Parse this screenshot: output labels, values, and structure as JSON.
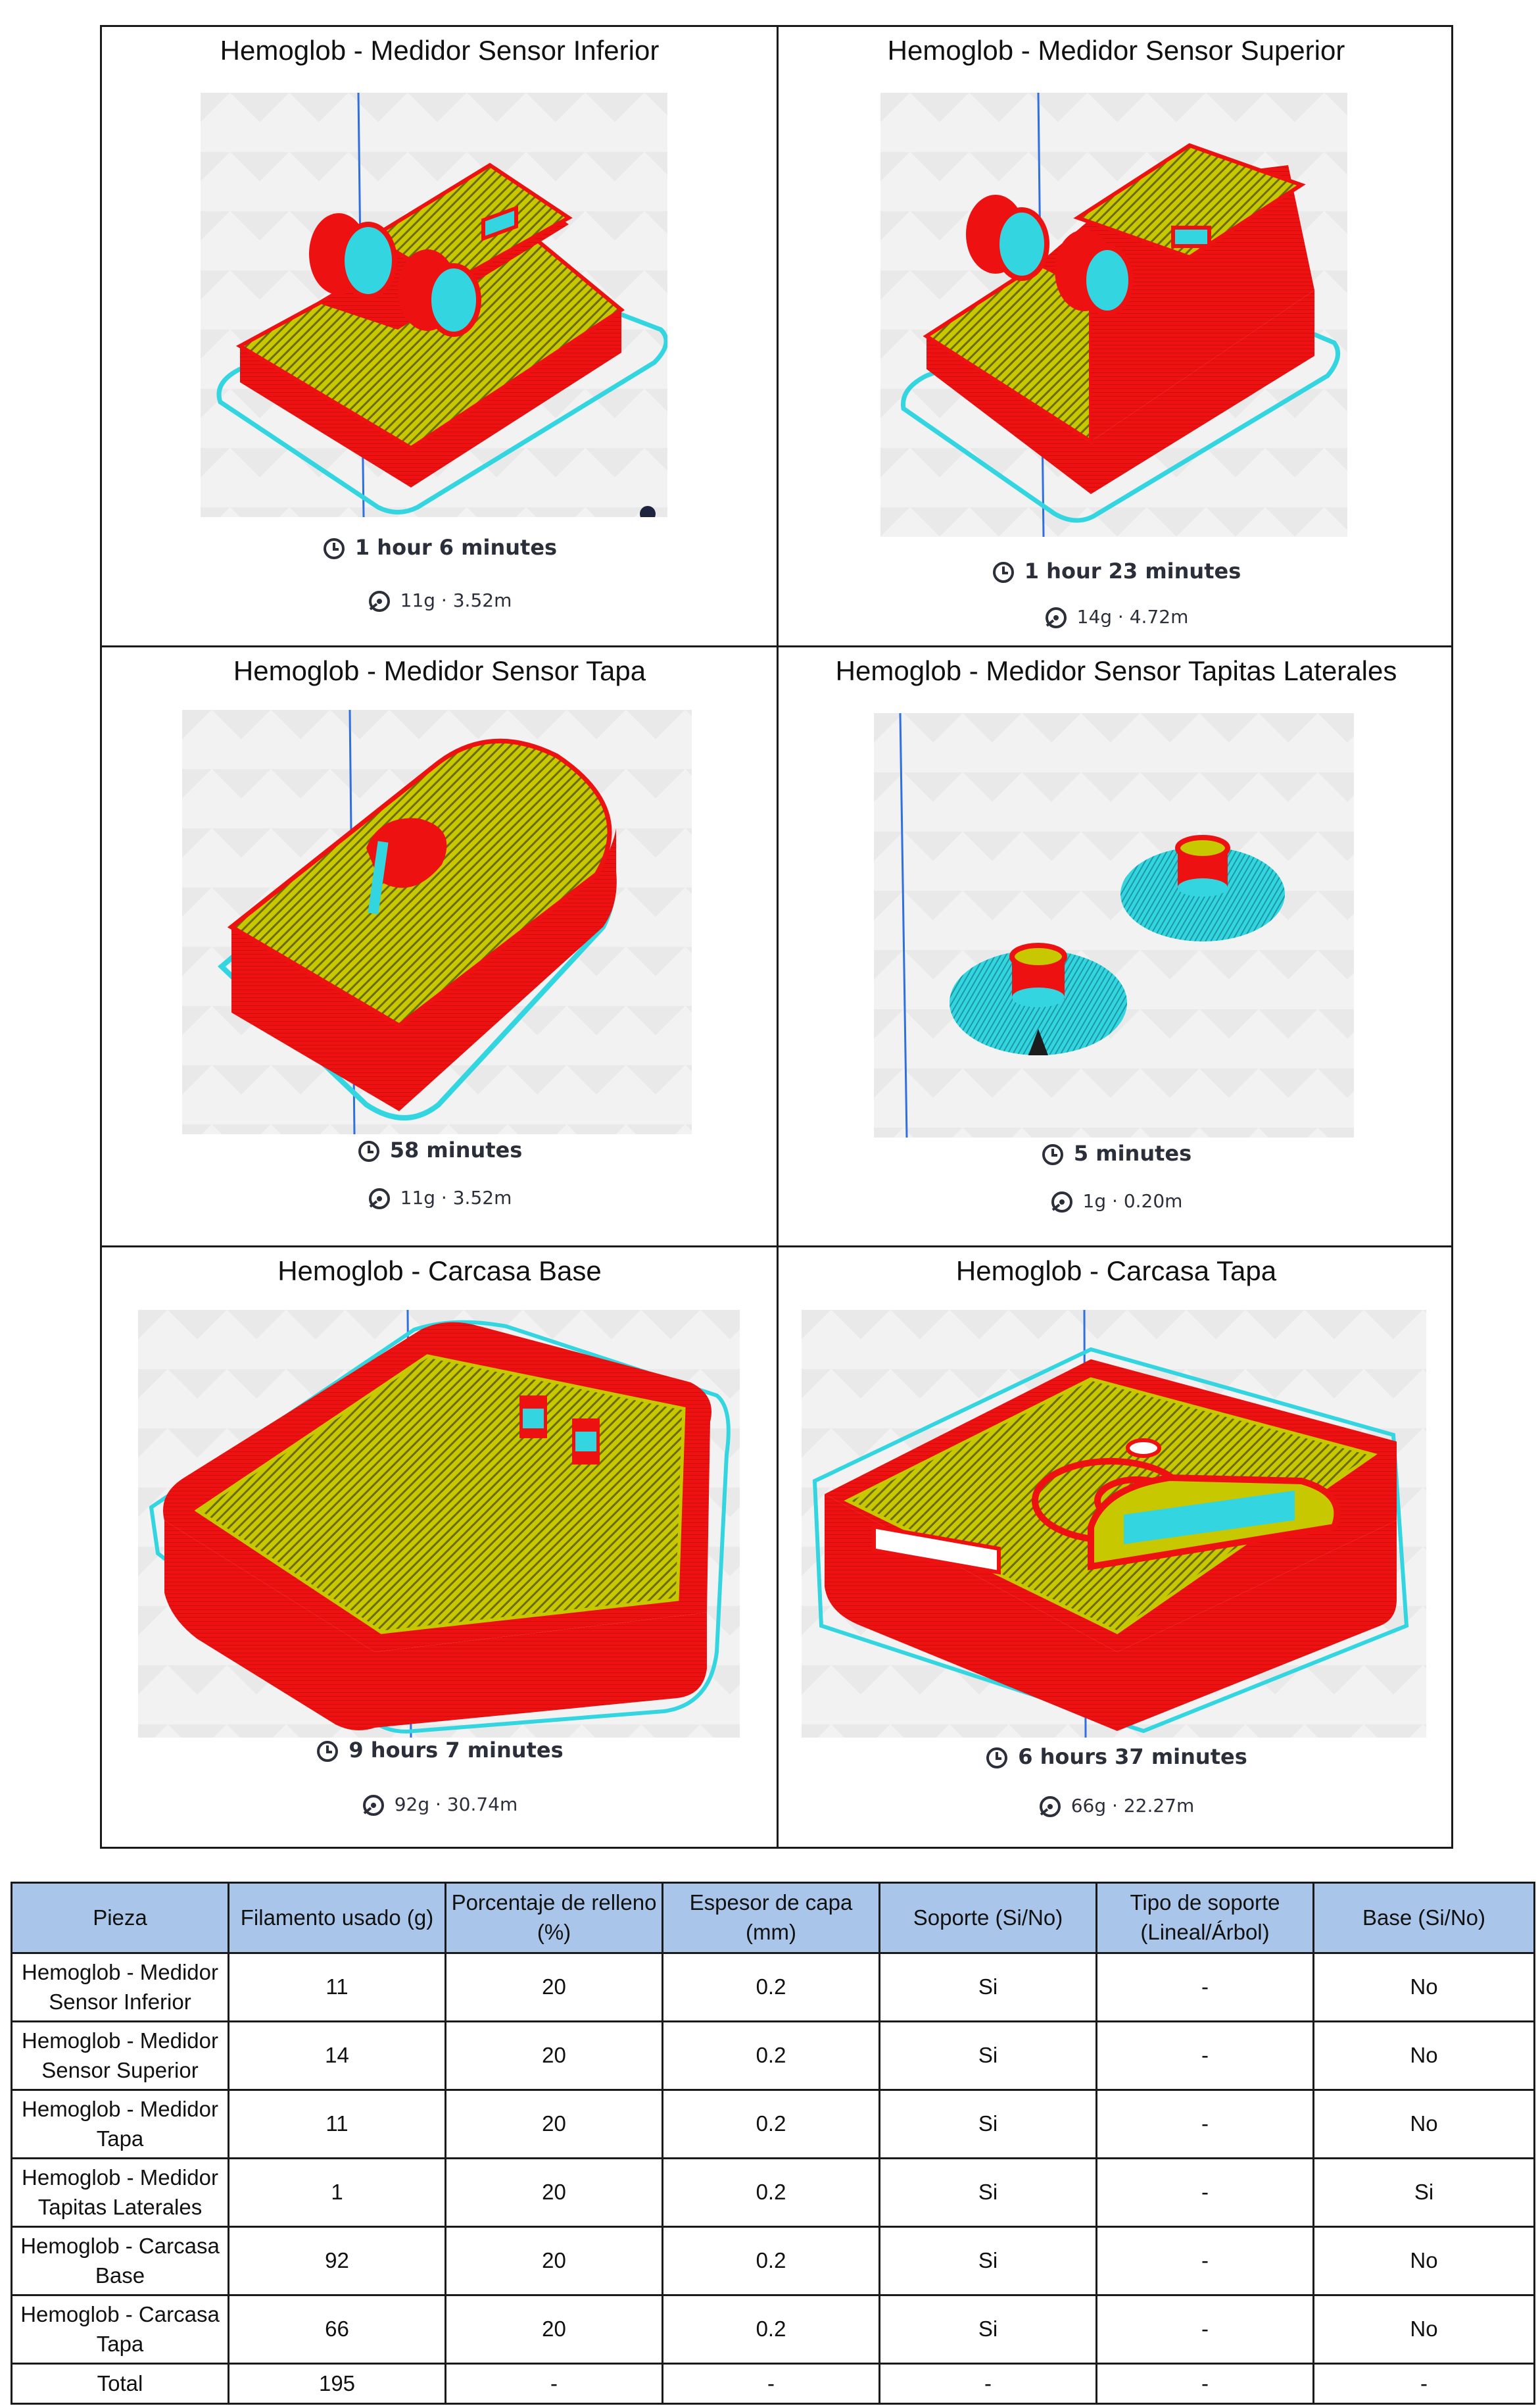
{
  "panels": [
    {
      "title": "Hemoglob - Medidor Sensor Inferior",
      "time": "1 hour 6 minutes",
      "material": "11g · 3.52m"
    },
    {
      "title": "Hemoglob - Medidor Sensor Superior",
      "time": "1 hour 23 minutes",
      "material": "14g · 4.72m"
    },
    {
      "title": "Hemoglob - Medidor Sensor Tapa",
      "time": "58 minutes",
      "material": "11g · 3.52m"
    },
    {
      "title": "Hemoglob - Medidor Sensor Tapitas Laterales",
      "time": "5 minutes",
      "material": "1g · 0.20m"
    },
    {
      "title": "Hemoglob - Carcasa Base",
      "time": "9 hours 7 minutes",
      "material": "92g · 30.74m"
    },
    {
      "title": "Hemoglob - Carcasa Tapa",
      "time": "6 hours 37 minutes",
      "material": "66g · 22.27m"
    }
  ],
  "icons": {
    "time": "clock-icon",
    "material": "filament-spool-icon"
  },
  "colors": {
    "walls": "#ee1111",
    "infill": "#c8c800",
    "support": "#33d6e0",
    "header_bg": "#a9c6ea",
    "axis": "#2f6fe0"
  },
  "table": {
    "headers": [
      "Pieza",
      "Filamento usado (g)",
      "Porcentaje de relleno (%)",
      "Espesor de capa (mm)",
      "Soporte (Si/No)",
      "Tipo de soporte (Lineal/Árbol)",
      "Base (Si/No)"
    ],
    "rows": [
      [
        "Hemoglob - Medidor Sensor Inferior",
        "11",
        "20",
        "0.2",
        "Si",
        "-",
        "No"
      ],
      [
        "Hemoglob - Medidor Sensor Superior",
        "14",
        "20",
        "0.2",
        "Si",
        "-",
        "No"
      ],
      [
        "Hemoglob - Medidor Tapa",
        "11",
        "20",
        "0.2",
        "Si",
        "-",
        "No"
      ],
      [
        "Hemoglob - Medidor Tapitas Laterales",
        "1",
        "20",
        "0.2",
        "Si",
        "-",
        "Si"
      ],
      [
        "Hemoglob - Carcasa Base",
        "92",
        "20",
        "0.2",
        "Si",
        "-",
        "No"
      ],
      [
        "Hemoglob - Carcasa Tapa",
        "66",
        "20",
        "0.2",
        "Si",
        "-",
        "No"
      ]
    ],
    "total": [
      "Total",
      "195",
      "-",
      "-",
      "-",
      "-",
      "-"
    ]
  }
}
